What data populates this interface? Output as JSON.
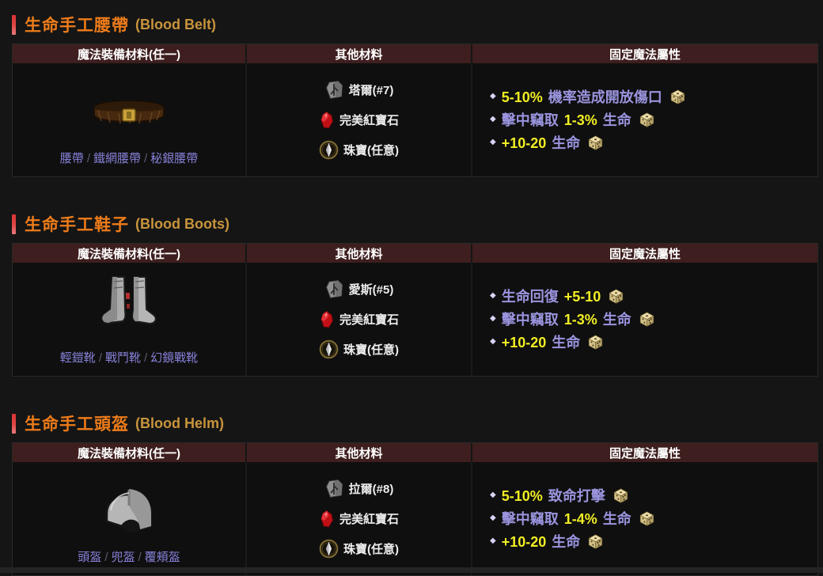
{
  "colors": {
    "page_background": "#151515",
    "table_background": "#0f0f0f",
    "table_header_background": "#3e1e1e",
    "accent_red_bar": "#e04040",
    "title_orange": "#ee7c1a",
    "title_gold": "#c8943c",
    "link_purple": "#8781d8",
    "property_lavender": "#9a94de",
    "property_yellow": "#f1ee24",
    "dice_tan": "#d8c98f"
  },
  "table_headers": {
    "col1": "魔法裝備材料(任一)",
    "col2": "其他材料",
    "col3": "固定魔法屬性"
  },
  "sections": [
    {
      "title_zh": "生命手工腰帶",
      "title_en": "(Blood Belt)",
      "item_image": "belt",
      "bases": [
        "腰帶",
        "鐵網腰帶",
        "秘銀腰帶"
      ],
      "materials": [
        {
          "icon": "rune-icon",
          "label": "塔爾(#7)"
        },
        {
          "icon": "ruby-icon",
          "label": "完美紅寶石"
        },
        {
          "icon": "jewel-icon",
          "label": "珠寶(任意)"
        }
      ],
      "properties": [
        {
          "segments": [
            {
              "t": "num",
              "v": "5-10%"
            },
            {
              "t": "text",
              "v": "機率造成開放傷口"
            }
          ]
        },
        {
          "segments": [
            {
              "t": "text",
              "v": "擊中竊取"
            },
            {
              "t": "num",
              "v": "1-3%"
            },
            {
              "t": "text",
              "v": "生命"
            }
          ]
        },
        {
          "segments": [
            {
              "t": "num",
              "v": "+10-20"
            },
            {
              "t": "text",
              "v": "生命"
            }
          ]
        }
      ]
    },
    {
      "title_zh": "生命手工鞋子",
      "title_en": "(Blood Boots)",
      "item_image": "boots",
      "bases": [
        "輕鎧靴",
        "戰鬥靴",
        "幻鏡戰靴"
      ],
      "materials": [
        {
          "icon": "rune-icon",
          "label": "愛斯(#5)"
        },
        {
          "icon": "ruby-icon",
          "label": "完美紅寶石"
        },
        {
          "icon": "jewel-icon",
          "label": "珠寶(任意)"
        }
      ],
      "properties": [
        {
          "segments": [
            {
              "t": "text",
              "v": "生命回復"
            },
            {
              "t": "num",
              "v": "+5-10"
            }
          ]
        },
        {
          "segments": [
            {
              "t": "text",
              "v": "擊中竊取"
            },
            {
              "t": "num",
              "v": "1-3%"
            },
            {
              "t": "text",
              "v": "生命"
            }
          ]
        },
        {
          "segments": [
            {
              "t": "num",
              "v": "+10-20"
            },
            {
              "t": "text",
              "v": "生命"
            }
          ]
        }
      ]
    },
    {
      "title_zh": "生命手工頭盔",
      "title_en": "(Blood Helm)",
      "item_image": "helm",
      "bases": [
        "頭盔",
        "兜盔",
        "覆頰盔"
      ],
      "materials": [
        {
          "icon": "rune-icon",
          "label": "拉爾(#8)"
        },
        {
          "icon": "ruby-icon",
          "label": "完美紅寶石"
        },
        {
          "icon": "jewel-icon",
          "label": "珠寶(任意)"
        }
      ],
      "properties": [
        {
          "segments": [
            {
              "t": "num",
              "v": "5-10%"
            },
            {
              "t": "text",
              "v": "致命打擊"
            }
          ]
        },
        {
          "segments": [
            {
              "t": "text",
              "v": "擊中竊取"
            },
            {
              "t": "num",
              "v": "1-4%"
            },
            {
              "t": "text",
              "v": "生命"
            }
          ]
        },
        {
          "segments": [
            {
              "t": "num",
              "v": "+10-20"
            },
            {
              "t": "text",
              "v": "生命"
            }
          ]
        }
      ]
    }
  ]
}
